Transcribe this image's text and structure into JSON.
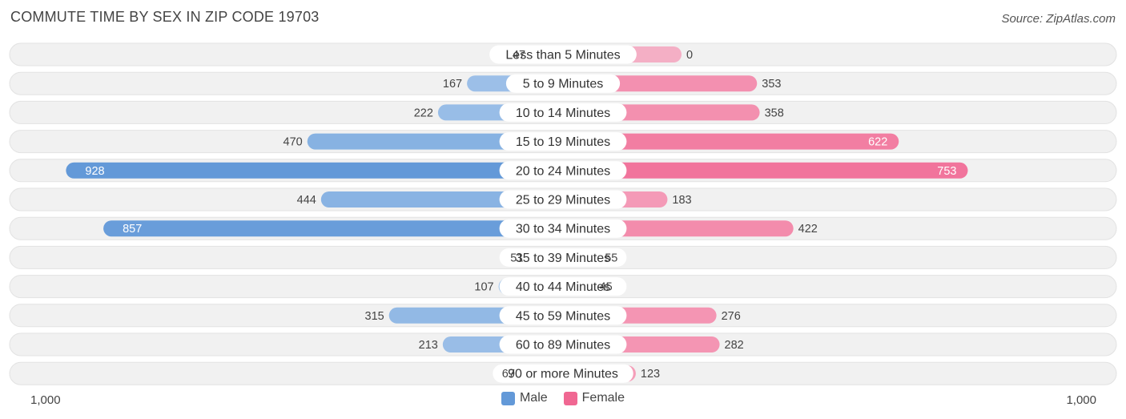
{
  "header": {
    "title": "COMMUTE TIME BY SEX IN ZIP CODE 19703",
    "source": "Source: ZipAtlas.com"
  },
  "axis": {
    "left_label": "1,000",
    "right_label": "1,000"
  },
  "legend": {
    "male_label": "Male",
    "female_label": "Female"
  },
  "colors": {
    "male_light": "#a4c5ea",
    "male_strong": "#6399d8",
    "female_light": "#f5a3bd",
    "female_strong": "#f06792",
    "row_bg": "#f1f1f1"
  },
  "chart_data": {
    "type": "bar",
    "orientation": "horizontal-diverging",
    "title": "COMMUTE TIME BY SEX IN ZIP CODE 19703",
    "xlim": [
      -1000,
      1000
    ],
    "categories": [
      "Less than 5 Minutes",
      "5 to 9 Minutes",
      "10 to 14 Minutes",
      "15 to 19 Minutes",
      "20 to 24 Minutes",
      "25 to 29 Minutes",
      "30 to 34 Minutes",
      "35 to 39 Minutes",
      "40 to 44 Minutes",
      "45 to 59 Minutes",
      "60 to 89 Minutes",
      "90 or more Minutes"
    ],
    "series": [
      {
        "name": "Male",
        "values": [
          47,
          167,
          222,
          470,
          928,
          444,
          857,
          51,
          107,
          315,
          213,
          67
        ]
      },
      {
        "name": "Female",
        "values": [
          0,
          353,
          358,
          622,
          753,
          183,
          422,
          55,
          45,
          276,
          282,
          123
        ]
      }
    ],
    "legend_position": "bottom-center",
    "grid": false
  }
}
